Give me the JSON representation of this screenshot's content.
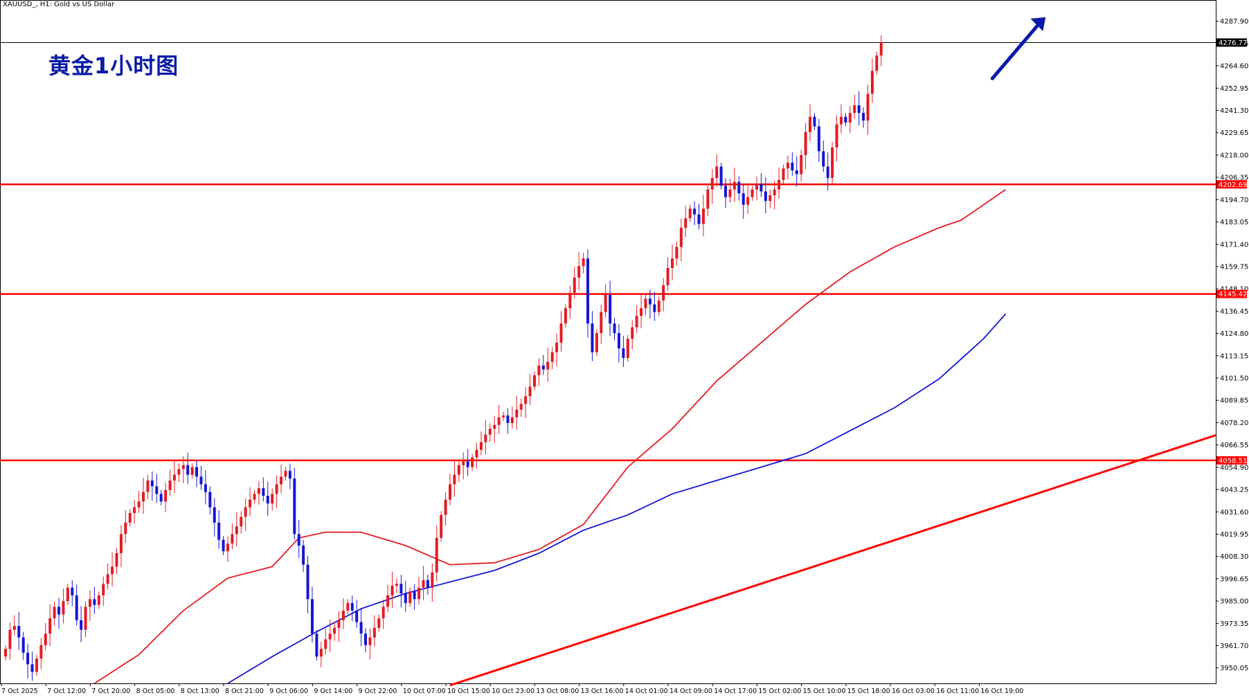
{
  "header": {
    "symbol_title": "XAUUSD_, H1:  Gold vs US Dollar"
  },
  "overlay_title": "黄金1小时图",
  "colors": {
    "bull": "#e41b23",
    "bear": "#1515d8",
    "ma_fast": "#e41b23",
    "ma_slow": "#1515d8",
    "hline": "#ff0000",
    "trendline": "#ff0000",
    "arrow": "#0a1aa8",
    "axis": "#000000"
  },
  "chart_data": {
    "type": "candlestick",
    "title": "XAUUSD_, H1:  Gold vs US Dollar",
    "annotation": "黄金1小时图",
    "ylim": [
      3942,
      4299
    ],
    "price_ticks": [
      "4287.90",
      "4276.25",
      "4264.60",
      "4252.95",
      "4241.30",
      "4229.65",
      "4218.00",
      "4206.35",
      "4194.70",
      "4183.05",
      "4171.40",
      "4159.75",
      "4148.10",
      "4136.45",
      "4124.80",
      "4113.15",
      "4101.50",
      "4089.85",
      "4078.20",
      "4066.55",
      "4054.90",
      "4043.25",
      "4031.60",
      "4019.95",
      "4008.30",
      "3996.65",
      "3985.00",
      "3973.35",
      "3961.70",
      "3950.05"
    ],
    "time_labels": [
      "7 Oct 2025",
      "7 Oct 12:00",
      "7 Oct 20:00",
      "8 Oct 05:00",
      "8 Oct 13:00",
      "8 Oct 21:00",
      "9 Oct 06:00",
      "9 Oct 14:00",
      "9 Oct 22:00",
      "10 Oct 07:00",
      "10 Oct 15:00",
      "10 Oct 23:00",
      "13 Oct 08:00",
      "13 Oct 16:00",
      "14 Oct 01:00",
      "14 Oct 09:00",
      "14 Oct 17:00",
      "15 Oct 02:00",
      "15 Oct 10:00",
      "15 Oct 18:00",
      "16 Oct 03:00",
      "16 Oct 11:00",
      "16 Oct 19:00"
    ],
    "current_price": "4276.77",
    "horizontal_levels": [
      "4202.69",
      "4145.42",
      "4058.51"
    ],
    "trendline": {
      "start": {
        "bar": 100,
        "price": 3941.0
      },
      "end": {
        "bar": 220,
        "price": 4032.0
      }
    },
    "arrow": {
      "start": {
        "bar": 222,
        "price": 4258.0
      },
      "end": {
        "bar": 234,
        "price": 4290.0
      }
    },
    "candle_closes": [
      3960,
      3970,
      3972,
      3966,
      3958,
      3952,
      3948,
      3955,
      3962,
      3968,
      3976,
      3982,
      3978,
      3985,
      3992,
      3988,
      3975,
      3970,
      3982,
      3986,
      3983,
      3988,
      3994,
      3999,
      4003,
      4010,
      4020,
      4026,
      4031,
      4034,
      4037,
      4042,
      4048,
      4045,
      4041,
      4037,
      4043,
      4048,
      4051,
      4054,
      4056,
      4051,
      4055,
      4050,
      4046,
      4042,
      4034,
      4026,
      4017,
      4011,
      4015,
      4020,
      4024,
      4029,
      4034,
      4038,
      4041,
      4044,
      4040,
      4036,
      4041,
      4046,
      4050,
      4053,
      4049,
      4020,
      4014,
      4004,
      3986,
      3968,
      3956,
      3960,
      3965,
      3968,
      3971,
      3975,
      3980,
      3984,
      3980,
      3974,
      3968,
      3962,
      3966,
      3971,
      3976,
      3982,
      3988,
      3993,
      3994,
      3989,
      3984,
      3990,
      3986,
      3992,
      3996,
      3992,
      4000,
      4018,
      4030,
      4038,
      4046,
      4051,
      4056,
      4058,
      4055,
      4060,
      4064,
      4068,
      4072,
      4075,
      4077,
      4081,
      4082,
      4078,
      4081,
      4085,
      4088,
      4092,
      4097,
      4103,
      4108,
      4106,
      4110,
      4115,
      4120,
      4130,
      4138,
      4146,
      4154,
      4160,
      4164,
      4130,
      4115,
      4125,
      4136,
      4145,
      4130,
      4125,
      4117,
      4112,
      4122,
      4128,
      4134,
      4138,
      4143,
      4140,
      4136,
      4142,
      4150,
      4159,
      4164,
      4170,
      4180,
      4185,
      4190,
      4187,
      4182,
      4190,
      4200,
      4206,
      4212,
      4202,
      4196,
      4200,
      4204,
      4198,
      4192,
      4196,
      4200,
      4203,
      4199,
      4194,
      4197,
      4200,
      4205,
      4211,
      4214,
      4210,
      4208,
      4218,
      4230,
      4238,
      4233,
      4220,
      4212,
      4206,
      4222,
      4234,
      4238,
      4235,
      4240,
      4244,
      4240,
      4236,
      4250,
      4262,
      4270,
      4276.77
    ],
    "ma_fast": [
      {
        "bar": 20,
        "price": 3942
      },
      {
        "bar": 30,
        "price": 3957
      },
      {
        "bar": 40,
        "price": 3980
      },
      {
        "bar": 50,
        "price": 3997
      },
      {
        "bar": 60,
        "price": 4003
      },
      {
        "bar": 66,
        "price": 4018
      },
      {
        "bar": 72,
        "price": 4021
      },
      {
        "bar": 80,
        "price": 4021
      },
      {
        "bar": 90,
        "price": 4014
      },
      {
        "bar": 100,
        "price": 4004
      },
      {
        "bar": 110,
        "price": 4005
      },
      {
        "bar": 120,
        "price": 4012
      },
      {
        "bar": 130,
        "price": 4025
      },
      {
        "bar": 140,
        "price": 4055
      },
      {
        "bar": 150,
        "price": 4075
      },
      {
        "bar": 160,
        "price": 4100
      },
      {
        "bar": 170,
        "price": 4120
      },
      {
        "bar": 180,
        "price": 4140
      },
      {
        "bar": 190,
        "price": 4157
      },
      {
        "bar": 200,
        "price": 4170
      },
      {
        "bar": 210,
        "price": 4180
      },
      {
        "bar": 215,
        "price": 4184
      },
      {
        "bar": 225,
        "price": 4200
      }
    ],
    "ma_slow": [
      {
        "bar": 50,
        "price": 3942
      },
      {
        "bar": 60,
        "price": 3956
      },
      {
        "bar": 70,
        "price": 3969
      },
      {
        "bar": 80,
        "price": 3981
      },
      {
        "bar": 90,
        "price": 3989
      },
      {
        "bar": 100,
        "price": 3995
      },
      {
        "bar": 110,
        "price": 4001
      },
      {
        "bar": 120,
        "price": 4010
      },
      {
        "bar": 130,
        "price": 4022
      },
      {
        "bar": 140,
        "price": 4030
      },
      {
        "bar": 150,
        "price": 4041
      },
      {
        "bar": 160,
        "price": 4048
      },
      {
        "bar": 170,
        "price": 4055
      },
      {
        "bar": 180,
        "price": 4062
      },
      {
        "bar": 190,
        "price": 4074
      },
      {
        "bar": 200,
        "price": 4086
      },
      {
        "bar": 210,
        "price": 4101
      },
      {
        "bar": 220,
        "price": 4122
      },
      {
        "bar": 225,
        "price": 4135
      }
    ]
  }
}
